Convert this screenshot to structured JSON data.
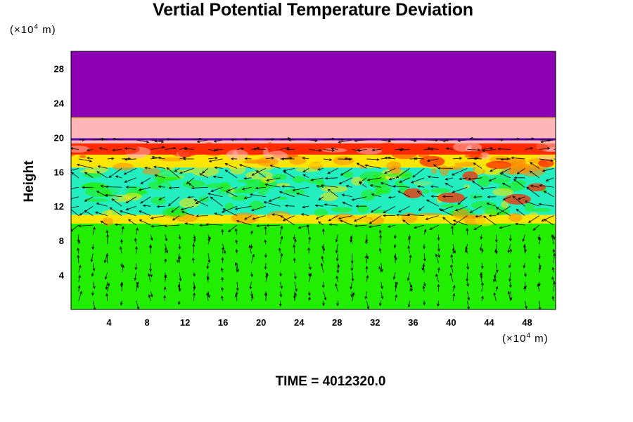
{
  "title": "Vertial Potential Temperature Deviation",
  "time_label": "TIME = 4012320.0",
  "colors": {
    "purple": "#8e00b4",
    "pink": "#ffb6b6",
    "red": "#ff2a00",
    "orange": "#ff8a00",
    "yellow": "#ffe600",
    "green": "#22ee00",
    "cyan": "#22eec0",
    "frame": "#000000"
  },
  "chart_data": {
    "type": "heatmap",
    "title": "Vertial Potential Temperature Deviation",
    "xlabel": "",
    "ylabel": "Height",
    "x_unit": {
      "prefix": "(×10",
      "exponent": "4",
      "suffix": " m)"
    },
    "y_unit": {
      "prefix": "(×10",
      "exponent": "4",
      "suffix": " m)"
    },
    "xlim": [
      0,
      51
    ],
    "ylim": [
      0,
      30
    ],
    "x_ticks": [
      4,
      8,
      12,
      16,
      20,
      24,
      28,
      32,
      36,
      40,
      44,
      48
    ],
    "y_ticks": [
      4,
      8,
      12,
      16,
      20,
      24,
      28
    ],
    "layers": [
      {
        "from": 0,
        "to": 10,
        "color": "green"
      },
      {
        "from": 10,
        "to": 11,
        "color": "yellow"
      },
      {
        "from": 11,
        "to": 16.5,
        "color": "cyan"
      },
      {
        "from": 16.5,
        "to": 18,
        "color": "yellow"
      },
      {
        "from": 18,
        "to": 19.3,
        "color": "red"
      },
      {
        "from": 19.3,
        "to": 20,
        "color": "pink"
      },
      {
        "from": 20,
        "to": 22.3,
        "color": "pink"
      },
      {
        "from": 22.3,
        "to": 30,
        "color": "purple"
      }
    ],
    "overlay": "wind vectors",
    "grid": false
  }
}
